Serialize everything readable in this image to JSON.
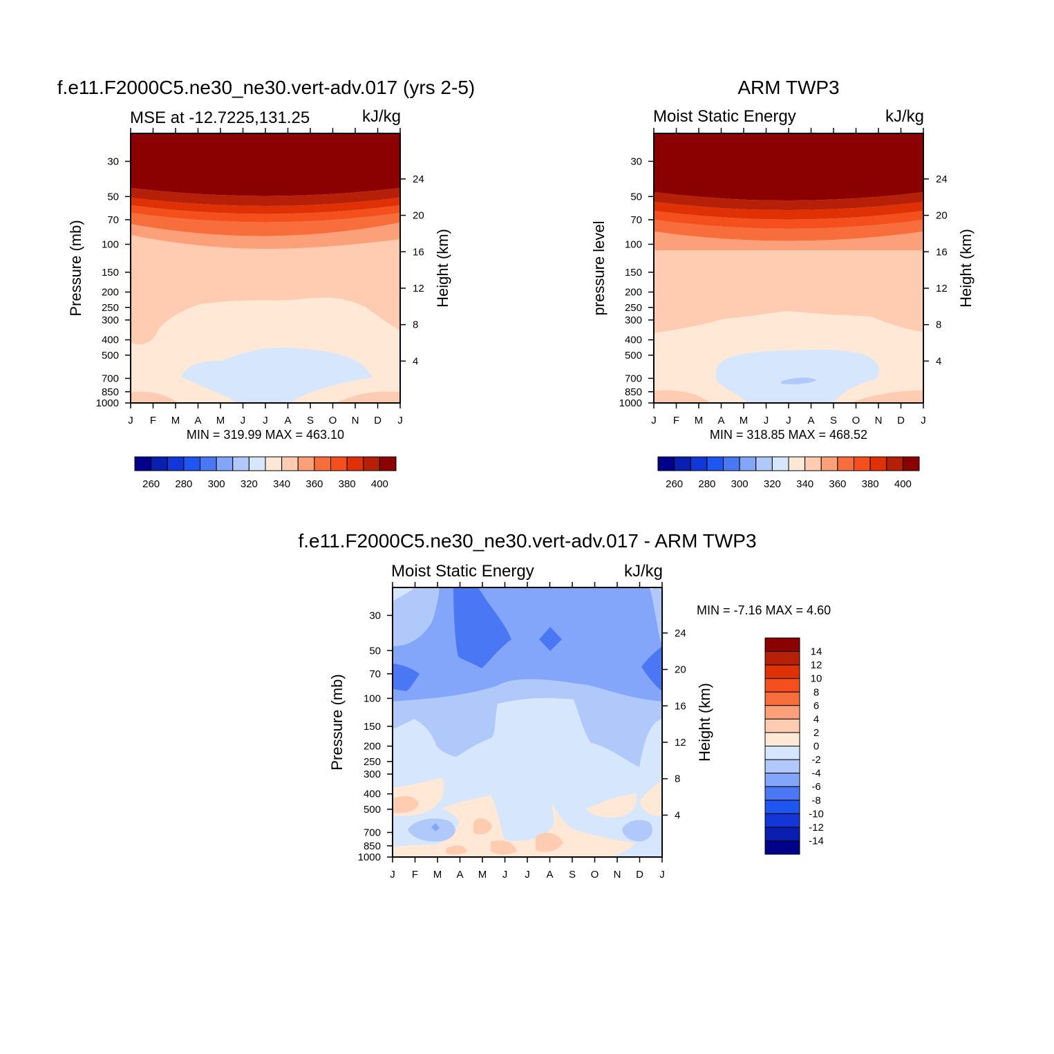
{
  "chart_data": [
    {
      "type": "heatmap",
      "title": "f.e11.F2000C5.ne30_ne30.vert-adv.017 (yrs 2-5)",
      "subtitle_left": "MSE at -12.7225,131.25",
      "subtitle_right": "kJ/kg",
      "ylabel": "Pressure (mb)",
      "y2label": "Height (km)",
      "x_ticks": [
        "J",
        "F",
        "M",
        "A",
        "M",
        "J",
        "J",
        "A",
        "S",
        "O",
        "N",
        "D",
        "J"
      ],
      "y_ticks": [
        "30",
        "50",
        "70",
        "100",
        "150",
        "200",
        "250",
        "300",
        "400",
        "500",
        "700",
        "850",
        "1000"
      ],
      "y2_ticks": [
        "24",
        "20",
        "16",
        "12",
        "8",
        "4"
      ],
      "min_max": "MIN = 319.99 MAX = 463.10",
      "colorbar_labels": [
        "260",
        "280",
        "300",
        "320",
        "340",
        "360",
        "380",
        "400"
      ]
    },
    {
      "type": "heatmap",
      "title": "ARM TWP3",
      "subtitle_left": "Moist Static Energy",
      "subtitle_right": "kJ/kg",
      "ylabel": "pressure level",
      "y2label": "Height (km)",
      "x_ticks": [
        "J",
        "F",
        "M",
        "A",
        "M",
        "J",
        "J",
        "A",
        "S",
        "O",
        "N",
        "D",
        "J"
      ],
      "y_ticks": [
        "30",
        "50",
        "70",
        "100",
        "150",
        "200",
        "250",
        "300",
        "400",
        "500",
        "700",
        "850",
        "1000"
      ],
      "y2_ticks": [
        "24",
        "20",
        "16",
        "12",
        "8",
        "4"
      ],
      "min_max": "MIN = 318.85 MAX = 468.52",
      "colorbar_labels": [
        "260",
        "280",
        "300",
        "320",
        "340",
        "360",
        "380",
        "400"
      ]
    },
    {
      "type": "heatmap",
      "title": "f.e11.F2000C5.ne30_ne30.vert-adv.017 - ARM TWP3",
      "subtitle_left": "Moist Static Energy",
      "subtitle_right": "kJ/kg",
      "ylabel": "Pressure (mb)",
      "y2label": "Height (km)",
      "x_ticks": [
        "J",
        "F",
        "M",
        "A",
        "M",
        "J",
        "J",
        "A",
        "S",
        "O",
        "N",
        "D",
        "J"
      ],
      "y_ticks": [
        "30",
        "50",
        "70",
        "100",
        "150",
        "200",
        "250",
        "300",
        "400",
        "500",
        "700",
        "850",
        "1000"
      ],
      "y2_ticks": [
        "24",
        "20",
        "16",
        "12",
        "8",
        "4"
      ],
      "min_max": "MIN =  -7.16 MAX =    4.60",
      "colorbar_labels": [
        "14",
        "12",
        "10",
        "8",
        "6",
        "4",
        "2",
        "0",
        "-2",
        "-4",
        "-6",
        "-8",
        "-10",
        "-12",
        "-14"
      ]
    }
  ],
  "colors": {
    "seq": [
      "#00008b",
      "#0a1fb0",
      "#1236d8",
      "#1f55f0",
      "#4a78f4",
      "#84a6fa",
      "#b1c8fb",
      "#d6e6fd",
      "#ffe8d6",
      "#ffccb2",
      "#fca07a",
      "#f76d3c",
      "#f54f1e",
      "#e03005",
      "#b72008",
      "#8b0000"
    ],
    "div_pos": [
      "#8b0000",
      "#b72008",
      "#e03005",
      "#f54f1e",
      "#f76d3c",
      "#fca07a",
      "#ffccb2",
      "#ffe8d6"
    ],
    "div_neg": [
      "#d6e6fd",
      "#b1c8fb",
      "#84a6fa",
      "#4a78f4",
      "#1f55f0",
      "#1236d8",
      "#0a1fb0",
      "#00008b"
    ]
  }
}
